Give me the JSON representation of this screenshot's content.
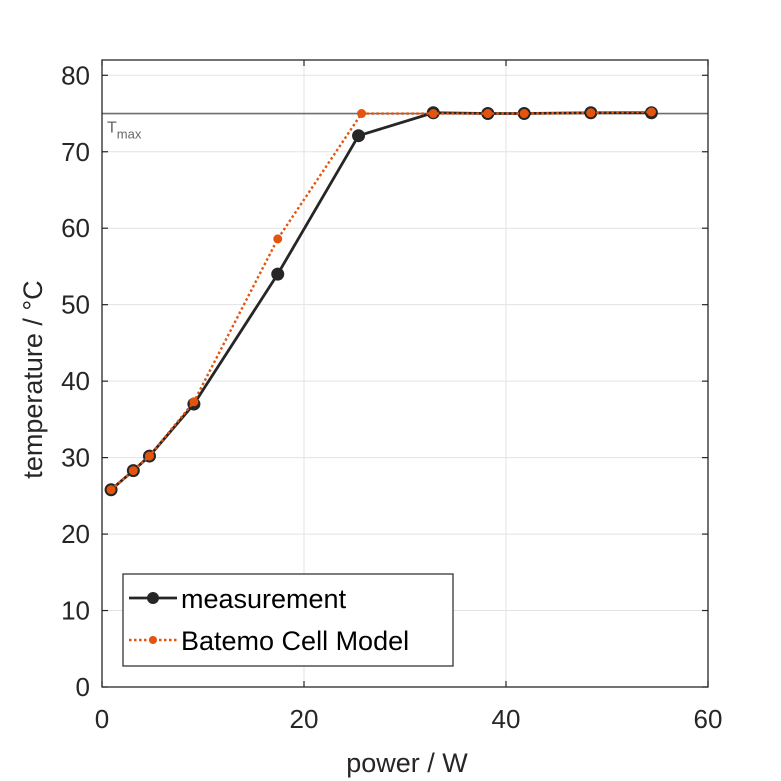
{
  "chart_data": {
    "type": "line",
    "title": "",
    "xlabel": "power / W",
    "ylabel": "temperature / °C",
    "xlim": [
      0,
      60
    ],
    "ylim": [
      0,
      82
    ],
    "xticks": [
      0,
      20,
      40,
      60
    ],
    "yticks": [
      0,
      10,
      20,
      30,
      40,
      50,
      60,
      70,
      80
    ],
    "grid": true,
    "legend_position": "bottom-left",
    "series": [
      {
        "name": "measurement",
        "color": "#262626",
        "line_style": "solid",
        "marker": "circle",
        "x": [
          0.9,
          3.1,
          4.7,
          9.1,
          17.4,
          25.4,
          32.8,
          38.2,
          41.8,
          48.4,
          54.4
        ],
        "y": [
          25.8,
          28.3,
          30.2,
          37.0,
          54.0,
          72.1,
          75.1,
          75.0,
          75.0,
          75.1,
          75.1
        ]
      },
      {
        "name": "Batemo Cell Model",
        "color": "#E3540F",
        "line_style": "dotted",
        "marker": "dot",
        "x": [
          0.9,
          3.1,
          4.7,
          9.1,
          17.4,
          25.7,
          32.8,
          38.2,
          41.8,
          48.4,
          54.4
        ],
        "y": [
          25.8,
          28.3,
          30.2,
          37.3,
          58.6,
          75.0,
          75.0,
          75.0,
          75.0,
          75.1,
          75.2
        ]
      }
    ],
    "reference_line": {
      "y": 75,
      "label_main": "T",
      "label_sub": "max",
      "color": "#6e6e6e"
    }
  }
}
